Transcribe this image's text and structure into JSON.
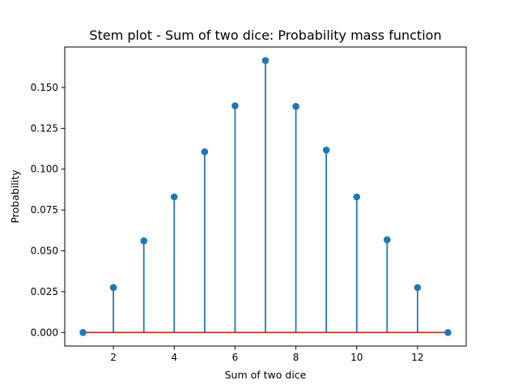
{
  "chart_data": {
    "type": "stem",
    "title": "Stem plot - Sum of two dice: Probability mass function",
    "xlabel": "Sum of two dice",
    "ylabel": "Probability",
    "x": [
      1,
      2,
      3,
      4,
      5,
      6,
      7,
      8,
      9,
      10,
      11,
      12,
      13
    ],
    "y": [
      0.0,
      0.0275,
      0.0561,
      0.083,
      0.1106,
      0.1388,
      0.1665,
      0.1384,
      0.1117,
      0.083,
      0.0568,
      0.0275,
      0.0
    ],
    "xlim": [
      0.4,
      13.6
    ],
    "ylim": [
      -0.0083,
      0.1748
    ],
    "xticks": [
      2,
      4,
      6,
      8,
      10,
      12
    ],
    "xtick_labels": [
      "2",
      "4",
      "6",
      "8",
      "10",
      "12"
    ],
    "yticks": [
      0.0,
      0.025,
      0.05,
      0.075,
      0.1,
      0.125,
      0.15
    ],
    "ytick_labels": [
      "0.000",
      "0.025",
      "0.050",
      "0.075",
      "0.100",
      "0.125",
      "0.150"
    ],
    "grid": false,
    "legend": "none",
    "colors": {
      "stem": "#1f77b4",
      "marker": "#1f77b4",
      "baseline": "#d62728"
    }
  }
}
